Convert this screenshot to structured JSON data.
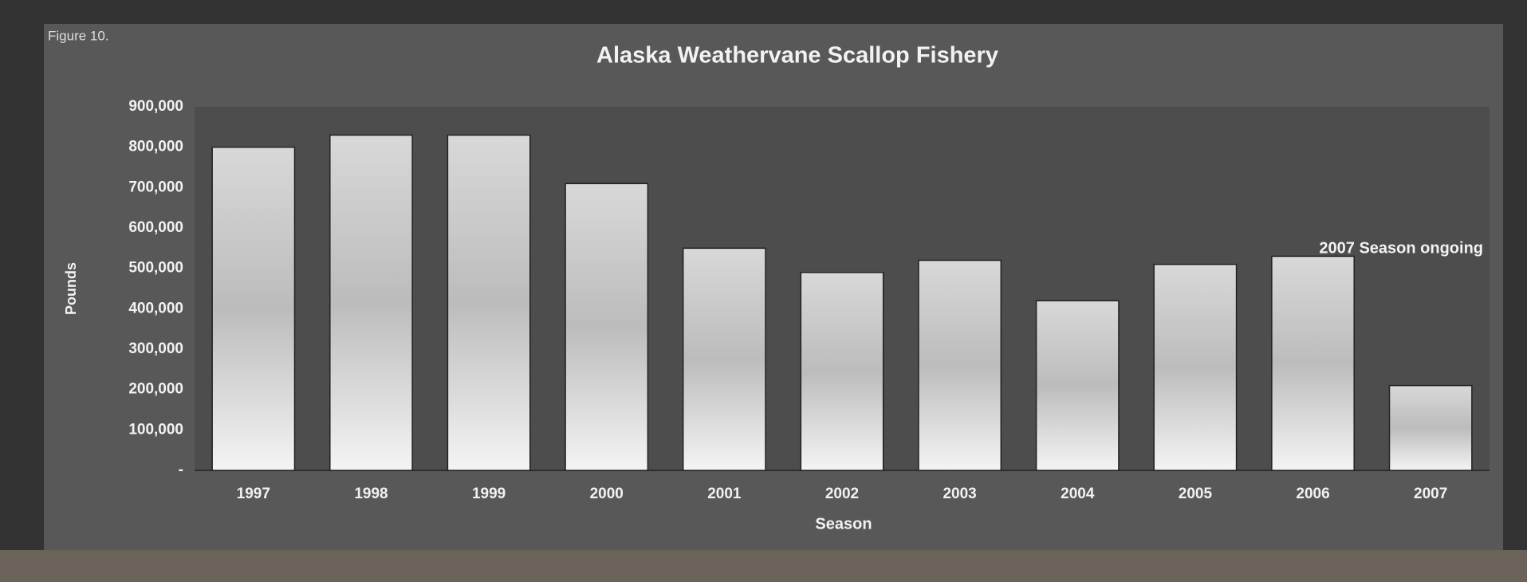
{
  "chart_data": {
    "type": "bar",
    "figure_label": "Figure 10.",
    "title": "Alaska Weathervane Scallop Fishery",
    "x_label": "Season",
    "y_label": "Pounds",
    "annotation": "2007 Season ongoing",
    "categories": [
      "1997",
      "1998",
      "1999",
      "2000",
      "2001",
      "2002",
      "2003",
      "2004",
      "2005",
      "2006",
      "2007"
    ],
    "values": [
      800000,
      830000,
      830000,
      710000,
      550000,
      490000,
      520000,
      420000,
      510000,
      530000,
      210000
    ],
    "color": "#e6e6e6",
    "ylim": [
      0,
      900000
    ],
    "yticks": [
      {
        "value": 0,
        "label": "-"
      },
      {
        "value": 100000,
        "label": "100,000"
      },
      {
        "value": 200000,
        "label": "200,000"
      },
      {
        "value": 300000,
        "label": "300,000"
      },
      {
        "value": 400000,
        "label": "400,000"
      },
      {
        "value": 500000,
        "label": "500,000"
      },
      {
        "value": 600000,
        "label": "600,000"
      },
      {
        "value": 700000,
        "label": "700,000"
      },
      {
        "value": 800000,
        "label": "800,000"
      },
      {
        "value": 900000,
        "label": "900,000"
      }
    ],
    "grid": true
  }
}
